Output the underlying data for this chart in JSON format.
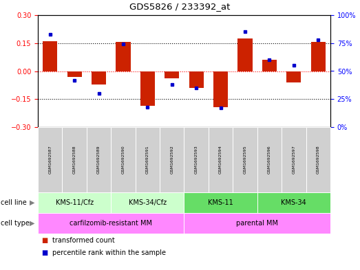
{
  "title": "GDS5826 / 233392_at",
  "samples": [
    "GSM1692587",
    "GSM1692588",
    "GSM1692589",
    "GSM1692590",
    "GSM1692591",
    "GSM1692592",
    "GSM1692593",
    "GSM1692594",
    "GSM1692595",
    "GSM1692596",
    "GSM1692597",
    "GSM1692598"
  ],
  "transformed_count": [
    0.16,
    -0.03,
    -0.07,
    0.155,
    -0.185,
    -0.04,
    -0.09,
    -0.195,
    0.175,
    0.06,
    -0.06,
    0.155
  ],
  "percentile_rank": [
    83,
    42,
    30,
    74,
    18,
    38,
    35,
    17,
    85,
    60,
    55,
    78
  ],
  "cell_line_groups": [
    {
      "label": "KMS-11/Cfz",
      "start": 0,
      "end": 3,
      "color": "#CCFFCC"
    },
    {
      "label": "KMS-34/Cfz",
      "start": 3,
      "end": 6,
      "color": "#CCFFCC"
    },
    {
      "label": "KMS-11",
      "start": 6,
      "end": 9,
      "color": "#66DD66"
    },
    {
      "label": "KMS-34",
      "start": 9,
      "end": 12,
      "color": "#66DD66"
    }
  ],
  "cell_type_groups": [
    {
      "label": "carfilzomib-resistant MM",
      "start": 0,
      "end": 6,
      "color": "#FF88FF"
    },
    {
      "label": "parental MM",
      "start": 6,
      "end": 12,
      "color": "#FF88FF"
    }
  ],
  "ylim_left": [
    -0.3,
    0.3
  ],
  "ylim_right": [
    0,
    100
  ],
  "yticks_left": [
    -0.3,
    -0.15,
    0,
    0.15,
    0.3
  ],
  "yticks_right": [
    0,
    25,
    50,
    75,
    100
  ],
  "bar_color": "#CC2200",
  "dot_color": "#0000CC",
  "background_color": "#FFFFFF",
  "plot_bg_color": "#FFFFFF",
  "sample_box_color": "#D0D0D0",
  "legend_items": [
    "transformed count",
    "percentile rank within the sample"
  ]
}
